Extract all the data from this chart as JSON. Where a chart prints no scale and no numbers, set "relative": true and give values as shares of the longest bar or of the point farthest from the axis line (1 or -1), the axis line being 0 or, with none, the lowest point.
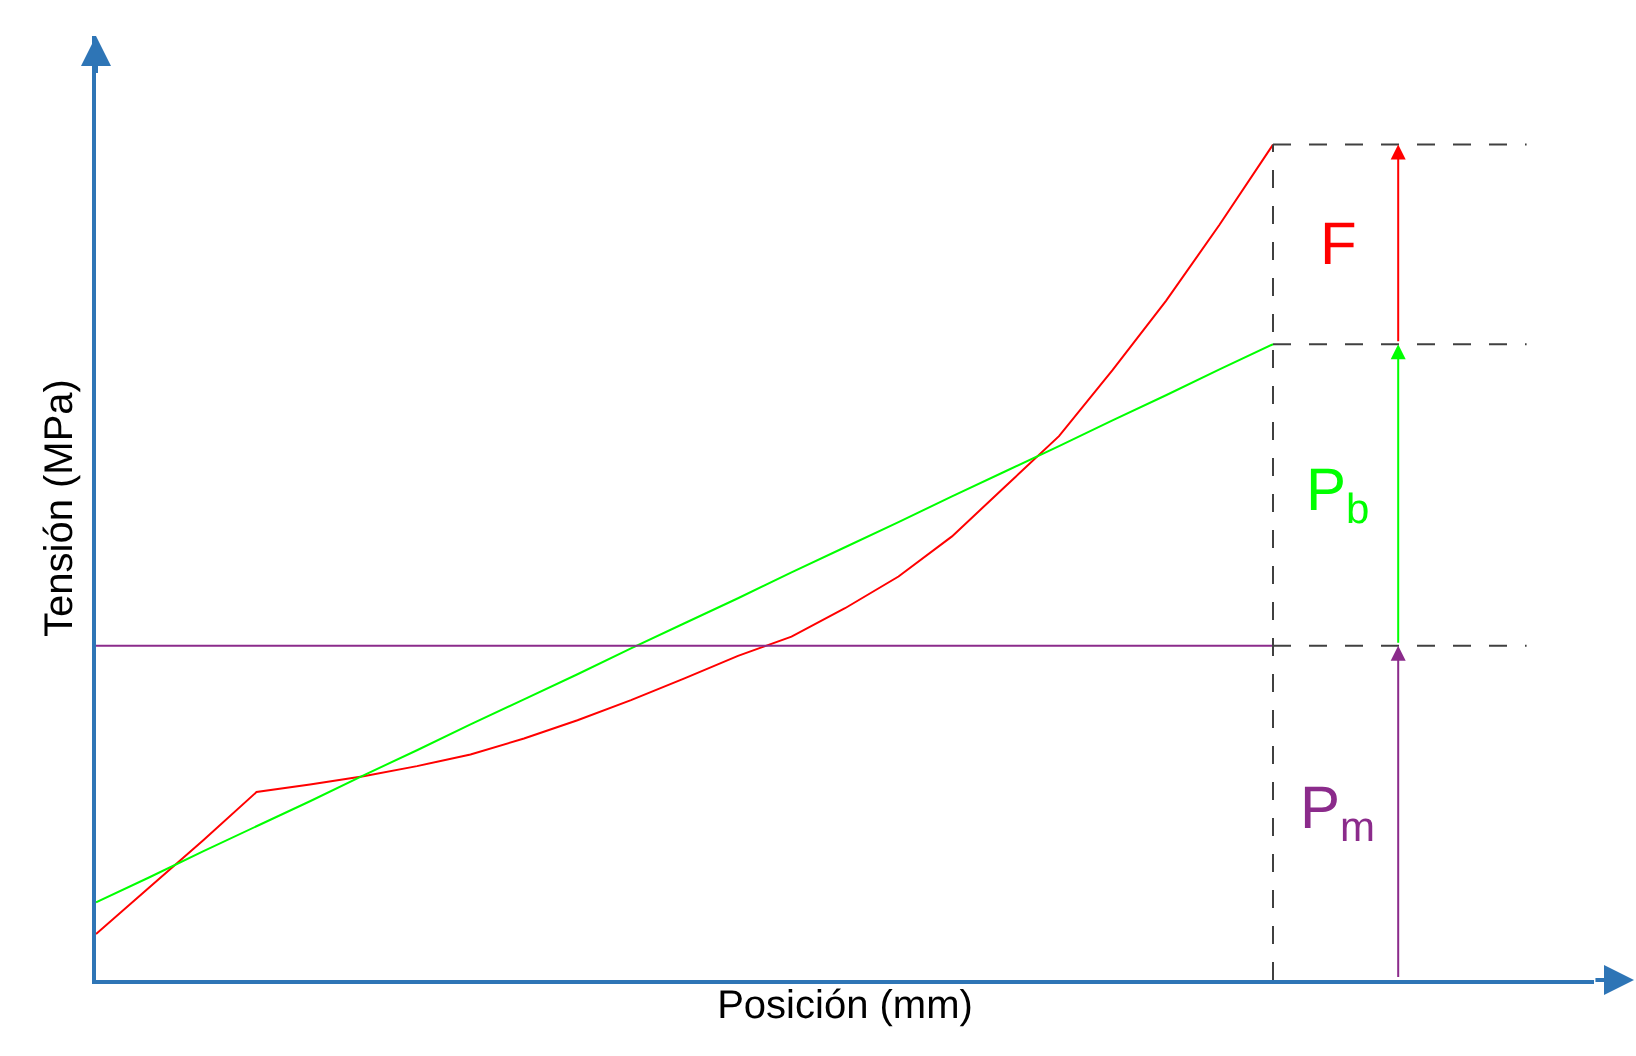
{
  "chart_data": {
    "type": "line",
    "relative": true,
    "xlabel": "Posición (mm)",
    "ylabel": "Tensión (MPa)",
    "categories": [
      null,
      null,
      null,
      null,
      null,
      null,
      null,
      null,
      null,
      null,
      null,
      null,
      null,
      null,
      null,
      null,
      null,
      null,
      null,
      null,
      null,
      null,
      null,
      null,
      null,
      null,
      null,
      null,
      null
    ],
    "series": [
      {
        "color": "#ff0000",
        "values": [
          0.055,
          0.111,
          0.167,
          0.225,
          0.234,
          0.244,
          0.256,
          0.27,
          0.289,
          0.311,
          0.335,
          0.361,
          0.388,
          0.411,
          0.445,
          0.483,
          0.531,
          0.591,
          0.651,
          0.73,
          0.813,
          0.904,
          1.0,
          null,
          null,
          null,
          null,
          null,
          null
        ]
      },
      {
        "color": "#00ff00",
        "values": [
          0.093,
          0.123,
          0.154,
          0.184,
          0.214,
          0.245,
          0.275,
          0.306,
          0.336,
          0.366,
          0.397,
          0.427,
          0.457,
          0.488,
          0.518,
          0.548,
          0.579,
          0.609,
          0.639,
          0.67,
          0.7,
          0.731,
          0.761,
          null,
          null,
          null,
          null,
          null,
          null
        ]
      },
      {
        "color": "#8b2b8b",
        "values": [
          0.4,
          0.4,
          0.4,
          0.4,
          0.4,
          0.4,
          0.4,
          0.4,
          0.4,
          0.4,
          0.4,
          0.4,
          0.4,
          0.4,
          0.4,
          0.4,
          0.4,
          0.4,
          0.4,
          0.4,
          0.4,
          0.4,
          0.4,
          null,
          null,
          null,
          null,
          null,
          null
        ]
      }
    ],
    "ref_lines": [
      {
        "axis": "y",
        "value": 1.0,
        "color": "#404040",
        "line_style": "dashed"
      },
      {
        "axis": "y",
        "value": 0.761,
        "color": "#404040",
        "line_style": "dashed"
      },
      {
        "axis": "y",
        "value": 0.4,
        "color": "#404040",
        "line_style": "dashed"
      }
    ],
    "annotations": [
      "F",
      "P$_{b}$",
      "P$_{m}$"
    ],
    "tick_labels": false,
    "marker": "none",
    "line_style": "solid"
  }
}
